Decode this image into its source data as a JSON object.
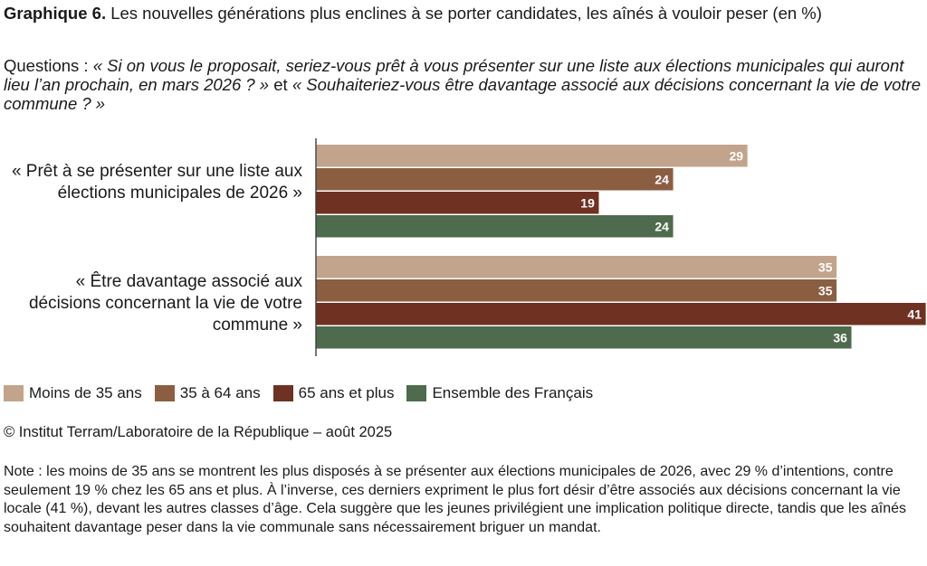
{
  "header": {
    "title_bold": "Graphique 6.",
    "title_rest": "Les nouvelles générations plus enclines à se porter candidates, les aînés à vouloir peser (en %)",
    "questions_prefix": "Questions :",
    "questions_text": "« Si on vous le proposait, seriez-vous prêt à vous présenter sur une liste aux élections municipales qui auront lieu l’an prochain, en mars 2026 ? »",
    "questions_mid": "et",
    "questions_text2": "« Souhaiteriez-vous être davantage associé aux décisions concernant la vie de votre commune ? »"
  },
  "chart_data": {
    "type": "bar",
    "orientation": "horizontal",
    "categories": [
      "« Prêt à se présenter sur une liste aux élections municipales de 2026 »",
      "« Être davantage associé aux décisions concernant la vie de votre commune »"
    ],
    "series": [
      {
        "name": "Moins de 35 ans",
        "color": "#c1a48b",
        "values": [
          29,
          35
        ]
      },
      {
        "name": "35 à 64 ans",
        "color": "#8b5e42",
        "values": [
          24,
          35
        ]
      },
      {
        "name": "65 ans et plus",
        "color": "#6e3122",
        "values": [
          19,
          41
        ]
      },
      {
        "name": "Ensemble des Français",
        "color": "#4e6b4d",
        "values": [
          24,
          36
        ]
      }
    ],
    "xlim": [
      0,
      41
    ],
    "grid": false,
    "legend": "bottom-left"
  },
  "footer": {
    "source": "© Institut Terram/Laboratoire de la République – août 2025",
    "note": "Note : les moins de 35 ans se montrent les plus disposés à se présenter aux élections municipales de 2026, avec 29 % d’intentions, contre seulement 19 % chez les 65 ans et plus. À l’inverse, ces derniers expriment le plus fort désir d’être associés aux décisions concernant la vie locale (41 %), devant les autres classes d’âge. Cela suggère que les jeunes privilégient une implication politique directe, tandis que les aînés souhaitent davantage peser dans la vie communale sans nécessairement briguer un mandat."
  }
}
